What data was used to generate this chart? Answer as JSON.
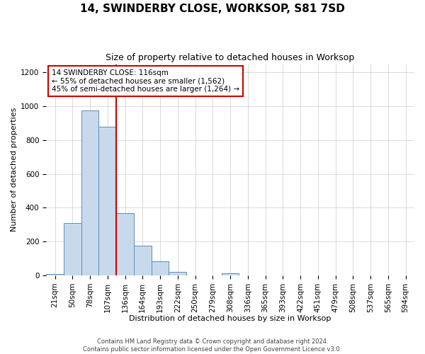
{
  "title": "14, SWINDERBY CLOSE, WORKSOP, S81 7SD",
  "subtitle": "Size of property relative to detached houses in Worksop",
  "xlabel": "Distribution of detached houses by size in Worksop",
  "ylabel": "Number of detached properties",
  "bin_labels": [
    "21sqm",
    "50sqm",
    "78sqm",
    "107sqm",
    "136sqm",
    "164sqm",
    "193sqm",
    "222sqm",
    "250sqm",
    "279sqm",
    "308sqm",
    "336sqm",
    "365sqm",
    "393sqm",
    "422sqm",
    "451sqm",
    "479sqm",
    "508sqm",
    "537sqm",
    "565sqm",
    "594sqm"
  ],
  "bar_values": [
    10,
    310,
    975,
    880,
    370,
    175,
    83,
    22,
    0,
    0,
    14,
    0,
    0,
    0,
    0,
    0,
    0,
    0,
    0,
    0,
    0
  ],
  "bar_color": "#c9d9ec",
  "bar_edge_color": "#5b8db8",
  "vline_color": "#cc0000",
  "vline_pos": 3.5,
  "annotation_lines": [
    "14 SWINDERBY CLOSE: 116sqm",
    "← 55% of detached houses are smaller (1,562)",
    "45% of semi-detached houses are larger (1,264) →"
  ],
  "annotation_box_color": "#ffffff",
  "annotation_box_edge_color": "#cc0000",
  "ylim": [
    0,
    1250
  ],
  "yticks": [
    0,
    200,
    400,
    600,
    800,
    1000,
    1200
  ],
  "footer_lines": [
    "Contains HM Land Registry data © Crown copyright and database right 2024.",
    "Contains public sector information licensed under the Open Government Licence v3.0."
  ],
  "background_color": "#ffffff",
  "grid_color": "#cccccc",
  "title_fontsize": 11,
  "subtitle_fontsize": 9,
  "xlabel_fontsize": 8,
  "ylabel_fontsize": 8,
  "tick_fontsize": 7.5,
  "annotation_fontsize": 7.5,
  "footer_fontsize": 6
}
